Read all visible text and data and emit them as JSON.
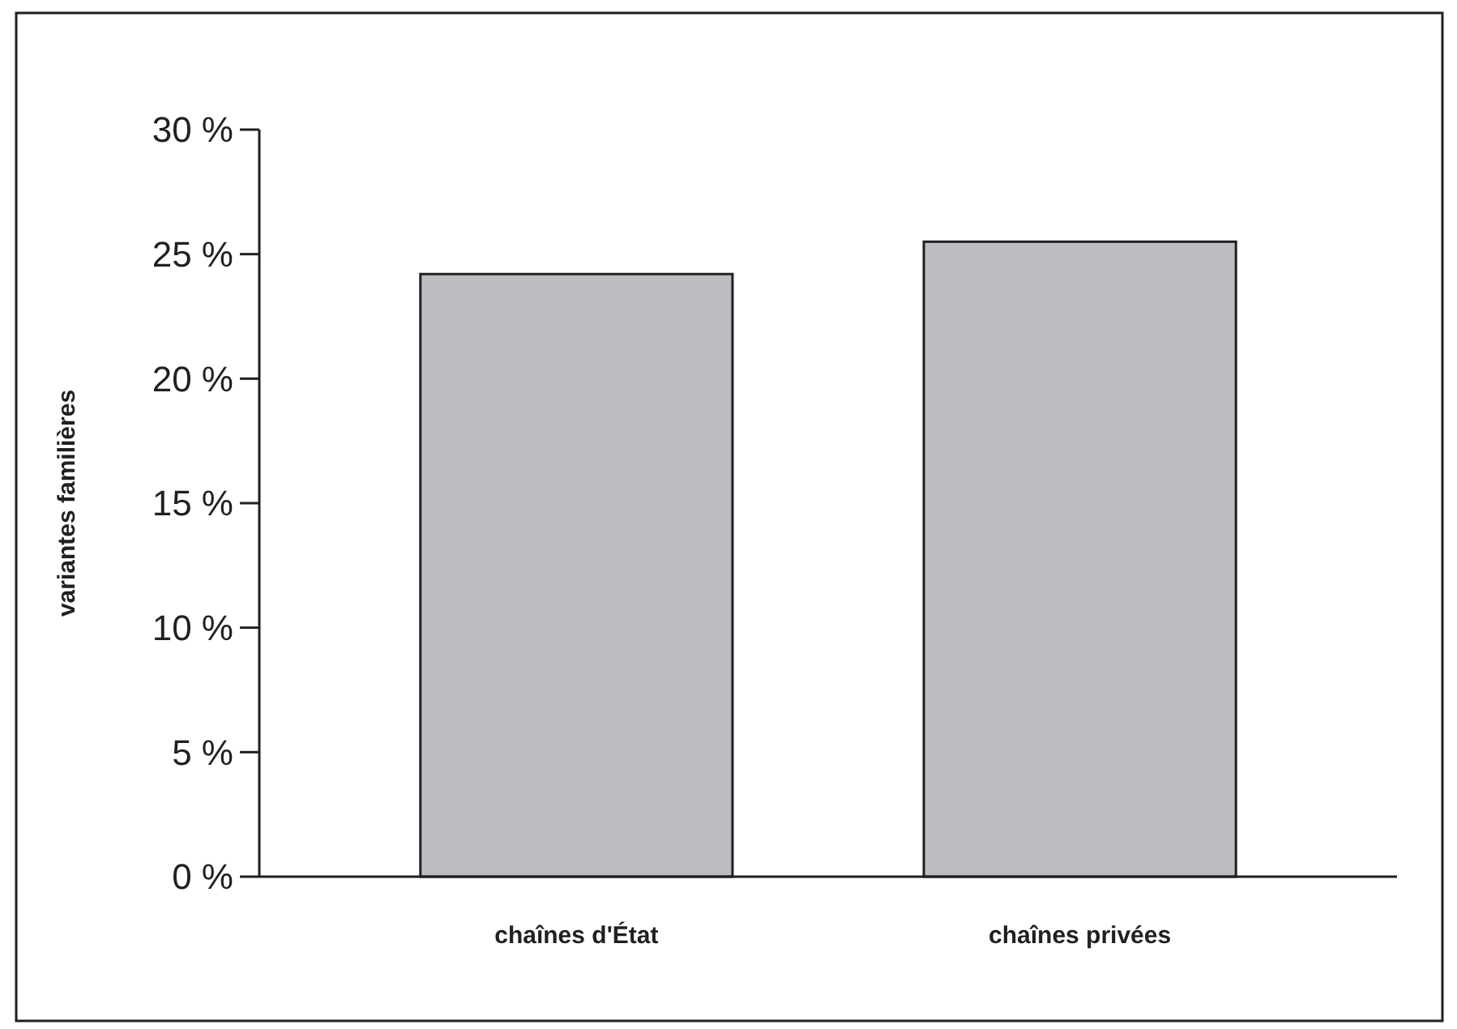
{
  "chart_data": {
    "type": "bar",
    "ylabel": "variantes familières",
    "categories": [
      "chaînes d'État",
      "chaînes privées"
    ],
    "values": [
      24.2,
      25.5
    ],
    "color": "#bcbdc1",
    "ylim": [
      0,
      30
    ],
    "yticks": [
      {
        "value": 0,
        "label": "0 %"
      },
      {
        "value": 5,
        "label": "5 %"
      },
      {
        "value": 10,
        "label": "10 %"
      },
      {
        "value": 15,
        "label": "15 %"
      },
      {
        "value": 20,
        "label": "20 %"
      },
      {
        "value": 25,
        "label": "25 %"
      },
      {
        "value": 30,
        "label": "30 %"
      }
    ],
    "grid": false
  }
}
